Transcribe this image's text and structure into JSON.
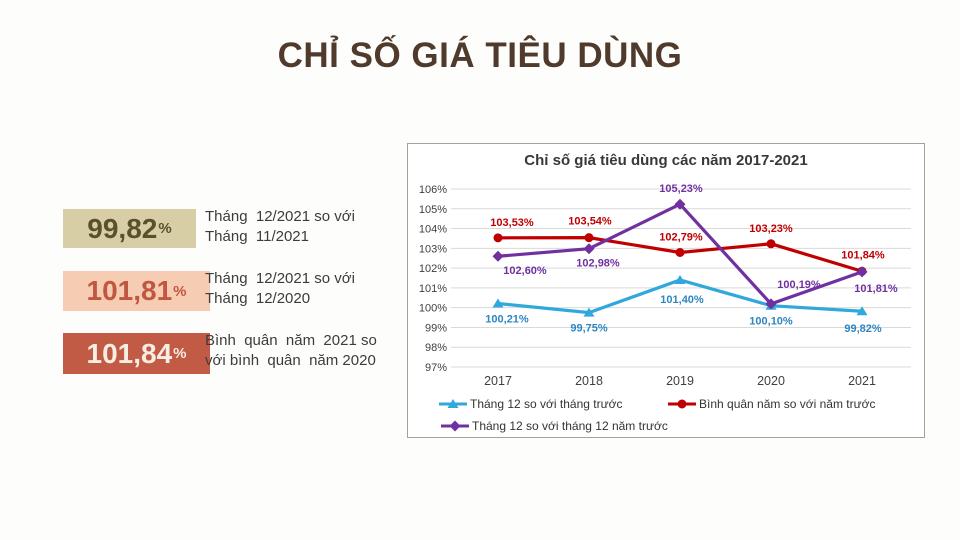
{
  "page": {
    "title": "CHỈ SỐ GIÁ TIÊU DÙNG",
    "title_color": "#4F3A2C",
    "background": "#FDFDFB"
  },
  "stats": [
    {
      "value": "99,82",
      "unit": "%",
      "line1": "Tháng  12/2021 so với",
      "line2": "Tháng  11/2021",
      "box_bg": "#D8CEA6",
      "box_text": "#59512C"
    },
    {
      "value": "101,81",
      "unit": "%",
      "line1": "Tháng  12/2021 so với",
      "line2": "Tháng  12/2020",
      "box_bg": "#F6CDB2",
      "box_text": "#C05742"
    },
    {
      "value": "101,84",
      "unit": "%",
      "line1": "Bình  quân  năm  2021 so",
      "line2": "với bình  quân  năm 2020",
      "box_bg": "#C25B45",
      "box_text": "#F6EEE3"
    }
  ],
  "chart_data": {
    "type": "line",
    "title": "Chỉ số giá tiêu dùng các năm 2017-2021",
    "categories": [
      "2017",
      "2018",
      "2019",
      "2020",
      "2021"
    ],
    "series": [
      {
        "name": "Tháng 12 so với tháng trước",
        "color": "#30A8DC",
        "label_color": "#2E86C1",
        "marker": "triangle",
        "values": [
          100.21,
          99.75,
          101.4,
          100.1,
          99.82
        ],
        "labels": [
          "100,21%",
          "99,75%",
          "101,40%",
          "100,10%",
          "99,82%"
        ]
      },
      {
        "name": "Bình quân năm so với năm trước",
        "color": "#C00000",
        "label_color": "#C00000",
        "marker": "circle",
        "values": [
          103.53,
          103.54,
          102.79,
          103.23,
          101.84
        ],
        "labels": [
          "103,53%",
          "103,54%",
          "102,79%",
          "103,23%",
          "101,84%"
        ]
      },
      {
        "name": "Tháng 12 so với tháng 12 năm trước",
        "color": "#7030A0",
        "label_color": "#7030A0",
        "marker": "diamond",
        "values": [
          102.6,
          102.98,
          105.23,
          100.19,
          101.81
        ],
        "labels": [
          "102,60%",
          "102,98%",
          "105,23%",
          "100,19%",
          "101,81%"
        ]
      }
    ],
    "ylim": [
      97,
      106
    ],
    "ytick_labels": [
      "97%",
      "98%",
      "99%",
      "100%",
      "101%",
      "102%",
      "103%",
      "104%",
      "105%",
      "106%"
    ],
    "grid": "horizontal",
    "gridline_color": "#D9D9D9",
    "axis_text_color": "#404040",
    "legend_position": "bottom",
    "legend_text_color": "#333333"
  }
}
